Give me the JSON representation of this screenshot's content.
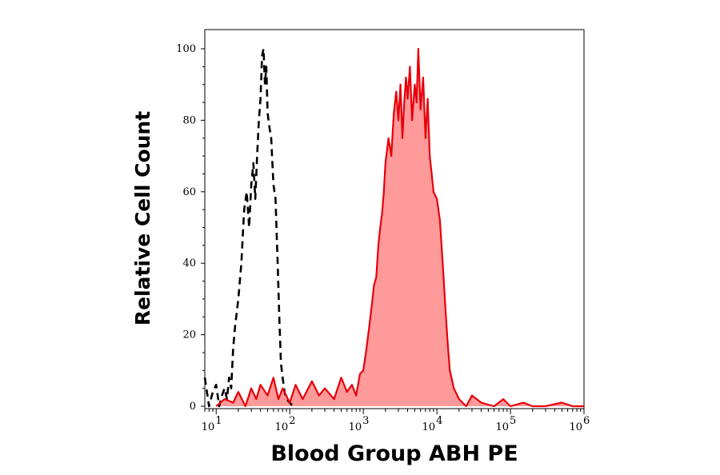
{
  "chart_data": {
    "type": "area",
    "title": "",
    "xlabel": "Blood Group ABH PE",
    "ylabel": "Relative Cell Count",
    "x_scale": "log",
    "xlim": [
      7,
      1000000
    ],
    "ylim": [
      0,
      100
    ],
    "x_ticks": [
      {
        "base": "10",
        "exp": "1",
        "value": 10
      },
      {
        "base": "10",
        "exp": "2",
        "value": 100
      },
      {
        "base": "10",
        "exp": "3",
        "value": 1000
      },
      {
        "base": "10",
        "exp": "4",
        "value": 10000
      },
      {
        "base": "10",
        "exp": "5",
        "value": 100000
      },
      {
        "base": "10",
        "exp": "6",
        "value": 1000000
      }
    ],
    "y_ticks": [
      "0",
      "20",
      "40",
      "60",
      "80",
      "100"
    ],
    "grid": false,
    "legend": "none",
    "series": [
      {
        "style": "dashed black line",
        "color": "#000000",
        "x": [
          7,
          8,
          9,
          10,
          11,
          12,
          13,
          14,
          15,
          16,
          17,
          18,
          20,
          22,
          24,
          26,
          28,
          30,
          32,
          34,
          36,
          38,
          40,
          42,
          44,
          46,
          48,
          50,
          53,
          56,
          60,
          64,
          68,
          72,
          76,
          80,
          85,
          90,
          100,
          110
        ],
        "values": [
          8,
          0,
          4,
          6,
          0,
          3,
          5,
          2,
          8,
          5,
          16,
          22,
          30,
          40,
          55,
          60,
          50,
          62,
          68,
          58,
          70,
          80,
          86,
          98,
          100,
          90,
          95,
          82,
          78,
          75,
          62,
          58,
          42,
          25,
          12,
          8,
          4,
          2,
          1,
          0
        ]
      },
      {
        "style": "red line with light red fill",
        "color": "#e8000b",
        "fill": "#ff9a9a",
        "x": [
          10,
          13,
          17,
          20,
          25,
          30,
          35,
          40,
          50,
          60,
          70,
          80,
          100,
          120,
          150,
          200,
          250,
          300,
          400,
          500,
          600,
          700,
          800,
          900,
          1000,
          1100,
          1200,
          1300,
          1400,
          1500,
          1600,
          1700,
          1800,
          1900,
          2000,
          2200,
          2400,
          2600,
          2800,
          3000,
          3200,
          3400,
          3600,
          3800,
          4000,
          4300,
          4600,
          5000,
          5300,
          5600,
          6000,
          6500,
          7000,
          7500,
          8000,
          8500,
          9000,
          10000,
          11000,
          12000,
          13000,
          14000,
          15000,
          17000,
          20000,
          25000,
          30000,
          40000,
          60000,
          80000,
          100000,
          150000,
          200000,
          300000,
          500000,
          700000,
          1000000
        ],
        "values": [
          0,
          2,
          1,
          4,
          0,
          5,
          2,
          6,
          3,
          8,
          2,
          5,
          1,
          6,
          2,
          7,
          3,
          5,
          2,
          8,
          4,
          6,
          3,
          9,
          10,
          16,
          22,
          28,
          34,
          36,
          45,
          50,
          54,
          60,
          68,
          75,
          70,
          82,
          88,
          80,
          90,
          75,
          85,
          92,
          86,
          95,
          80,
          90,
          85,
          100,
          83,
          92,
          75,
          86,
          70,
          65,
          60,
          58,
          52,
          40,
          28,
          18,
          10,
          5,
          2,
          0,
          3,
          1,
          0,
          2,
          0,
          1,
          0,
          0,
          1,
          0,
          0
        ]
      }
    ]
  }
}
